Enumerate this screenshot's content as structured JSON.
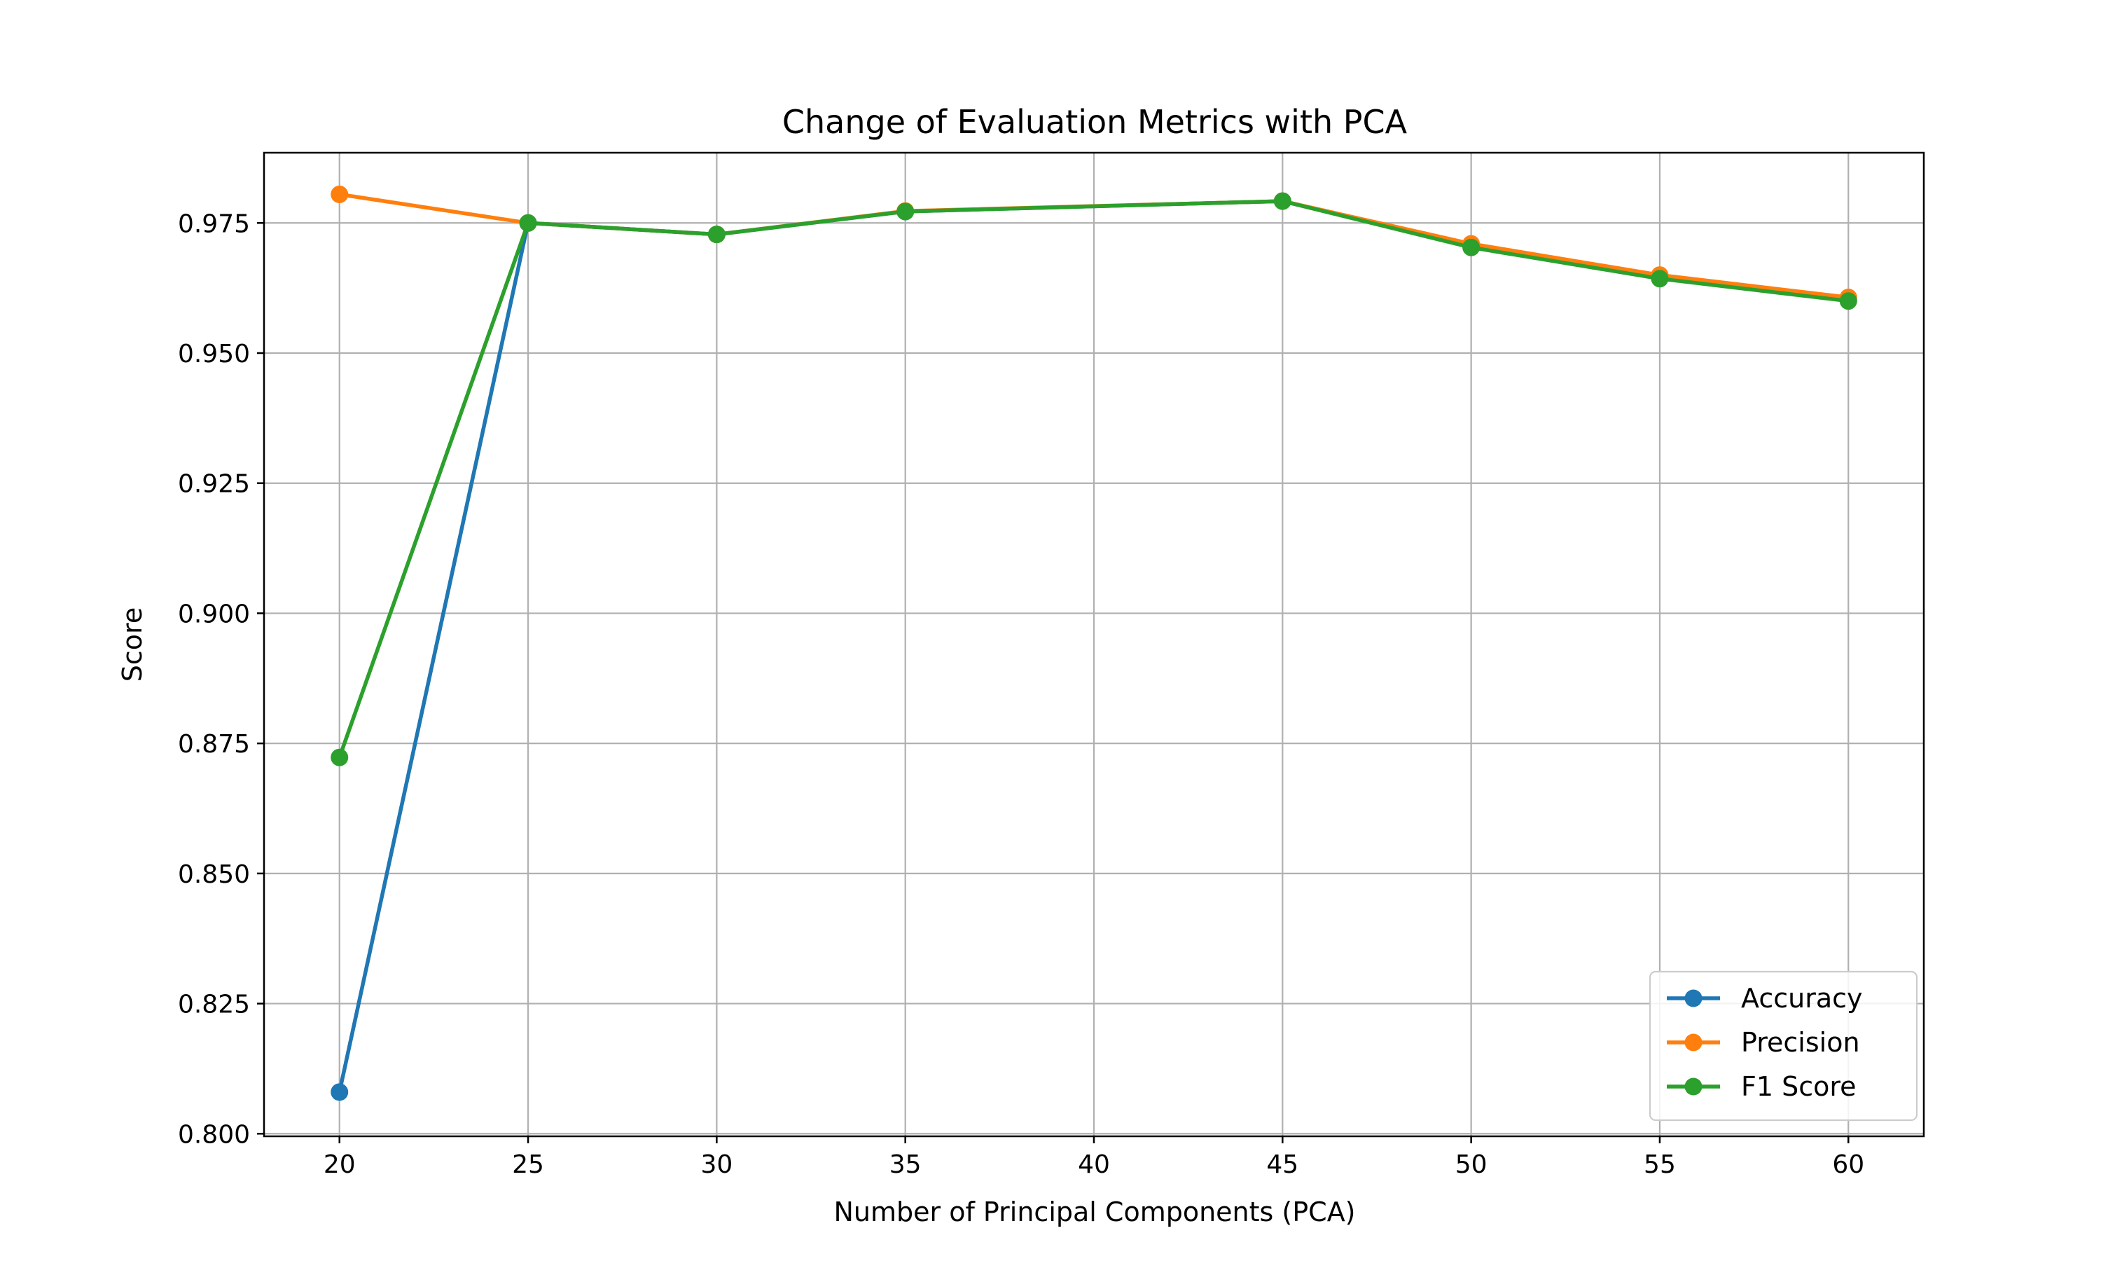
{
  "chart_data": {
    "type": "line",
    "title": "Change of Evaluation Metrics with PCA",
    "xlabel": "Number of Principal Components (PCA)",
    "ylabel": "Score",
    "x": [
      20,
      25,
      30,
      35,
      40,
      45,
      50,
      55,
      60
    ],
    "xticks": [
      "20",
      "25",
      "30",
      "35",
      "40",
      "45",
      "50",
      "55",
      "60"
    ],
    "yticks": [
      "0.800",
      "0.825",
      "0.850",
      "0.875",
      "0.900",
      "0.925",
      "0.950",
      "0.975"
    ],
    "xlim": [
      18,
      62
    ],
    "ylim": [
      0.7995,
      0.9885
    ],
    "grid": true,
    "legend_position": "lower-right",
    "series": [
      {
        "name": "Accuracy",
        "color": "#1f77b4",
        "x": [
          20,
          25,
          30,
          35,
          45,
          50,
          55,
          60
        ],
        "values": [
          0.808,
          0.975,
          0.9728,
          0.9772,
          0.9792,
          0.9705,
          0.9645,
          0.9602
        ]
      },
      {
        "name": "Precision",
        "color": "#ff7f0e",
        "x": [
          20,
          25,
          30,
          35,
          45,
          50,
          55,
          60
        ],
        "values": [
          0.9805,
          0.975,
          0.9728,
          0.9773,
          0.9792,
          0.971,
          0.965,
          0.9607
        ]
      },
      {
        "name": "F1 Score",
        "color": "#2ca02c",
        "x": [
          20,
          25,
          30,
          35,
          45,
          50,
          55,
          60
        ],
        "values": [
          0.8723,
          0.975,
          0.9728,
          0.9772,
          0.9792,
          0.9703,
          0.9643,
          0.96
        ]
      }
    ]
  }
}
